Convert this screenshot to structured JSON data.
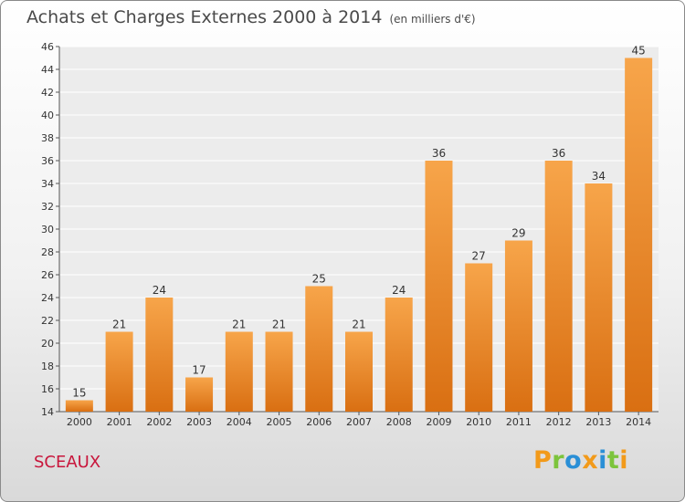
{
  "chart_data": {
    "type": "bar",
    "title": "Achats et Charges Externes 2000 à 2014",
    "subtitle": "(en milliers d'€)",
    "categories": [
      "2000",
      "2001",
      "2002",
      "2003",
      "2004",
      "2005",
      "2006",
      "2007",
      "2008",
      "2009",
      "2010",
      "2011",
      "2012",
      "2013",
      "2014"
    ],
    "values": [
      15,
      21,
      24,
      17,
      21,
      21,
      25,
      21,
      24,
      36,
      27,
      29,
      36,
      34,
      45
    ],
    "ylim": [
      14,
      46
    ],
    "yticks": [
      14,
      16,
      18,
      20,
      22,
      24,
      26,
      28,
      30,
      32,
      34,
      36,
      38,
      40,
      42,
      44,
      46
    ],
    "grid": true,
    "bar_color_top": "#f7a54a",
    "bar_color_bottom": "#d96f12"
  },
  "footer": {
    "city": "SCEAUX",
    "logo": "Proxiti"
  },
  "colors": {
    "city": "#c8163c",
    "logo_letters": [
      "#f29a1a",
      "#7cc43c",
      "#2a8fd6",
      "#f29a1a",
      "#2a8fd6",
      "#7cc43c",
      "#f29a1a"
    ]
  }
}
